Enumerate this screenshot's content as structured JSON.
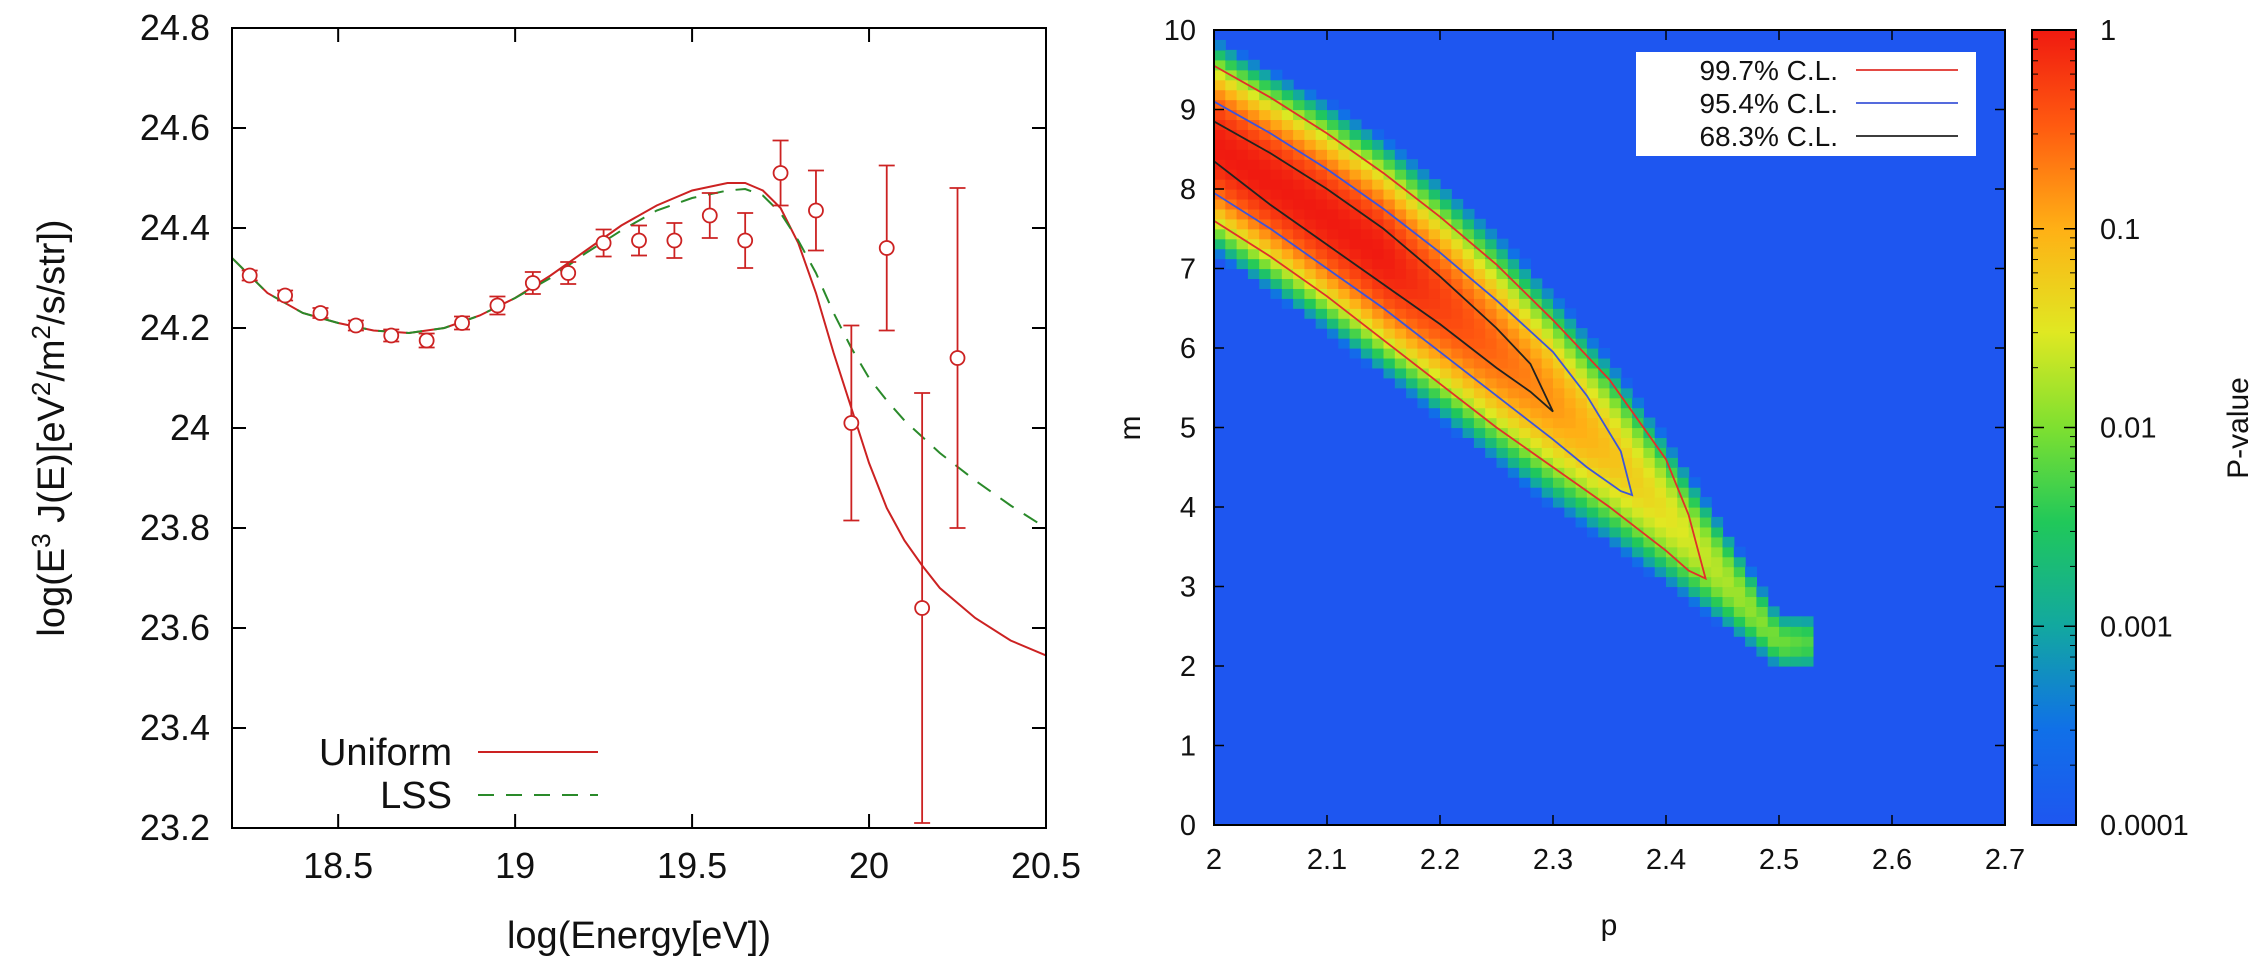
{
  "chart_data": [
    {
      "type": "scatter",
      "xlabel": "log(Energy[eV])",
      "ylabel_parts": {
        "a": "log(E",
        "a_sup": "3",
        "b": " J(E)[eV",
        "b_sup": "2",
        "c": "/m",
        "c_sup": "2",
        "d": "/s/str])"
      },
      "xlim": [
        18.2,
        20.5
      ],
      "ylim": [
        23.2,
        24.8
      ],
      "xticks": [
        "18.5",
        "19",
        "19.5",
        "20",
        "20.5"
      ],
      "yticks": [
        "23.2",
        "23.4",
        "23.6",
        "23.8",
        "24",
        "24.2",
        "24.4",
        "24.6",
        "24.8"
      ],
      "colors": {
        "data": "#cc2222",
        "uniform": "#cc2222",
        "lss": "#2a8a2a"
      },
      "points": [
        {
          "x": 18.25,
          "y": 24.305,
          "err": 0.01
        },
        {
          "x": 18.35,
          "y": 24.265,
          "err": 0.01
        },
        {
          "x": 18.45,
          "y": 24.23,
          "err": 0.01
        },
        {
          "x": 18.55,
          "y": 24.205,
          "err": 0.01
        },
        {
          "x": 18.65,
          "y": 24.185,
          "err": 0.012
        },
        {
          "x": 18.75,
          "y": 24.175,
          "err": 0.014
        },
        {
          "x": 18.85,
          "y": 24.21,
          "err": 0.013
        },
        {
          "x": 18.95,
          "y": 24.245,
          "err": 0.018
        },
        {
          "x": 19.05,
          "y": 24.29,
          "err": 0.022
        },
        {
          "x": 19.15,
          "y": 24.31,
          "err": 0.022
        },
        {
          "x": 19.25,
          "y": 24.37,
          "err": 0.027
        },
        {
          "x": 19.35,
          "y": 24.375,
          "err": 0.03
        },
        {
          "x": 19.45,
          "y": 24.375,
          "err": 0.035
        },
        {
          "x": 19.55,
          "y": 24.425,
          "err": 0.045
        },
        {
          "x": 19.65,
          "y": 24.375,
          "err": 0.055
        },
        {
          "x": 19.75,
          "y": 24.51,
          "err": 0.065
        },
        {
          "x": 19.85,
          "y": 24.435,
          "err": 0.08
        },
        {
          "x": 19.95,
          "y": 24.01,
          "err": 0.195
        },
        {
          "x": 20.05,
          "y": 24.36,
          "err": 0.165
        },
        {
          "x": 20.15,
          "y": 23.64,
          "err": 0.43
        },
        {
          "x": 20.25,
          "y": 24.14,
          "err": 0.34
        }
      ],
      "series": [
        {
          "name": "Uniform",
          "x": [
            18.2,
            18.3,
            18.4,
            18.5,
            18.6,
            18.7,
            18.8,
            18.9,
            19.0,
            19.1,
            19.2,
            19.3,
            19.4,
            19.5,
            19.6,
            19.65,
            19.7,
            19.75,
            19.8,
            19.85,
            19.9,
            19.95,
            20.0,
            20.05,
            20.1,
            20.15,
            20.2,
            20.3,
            20.4,
            20.5
          ],
          "y": [
            24.34,
            24.27,
            24.23,
            24.21,
            24.195,
            24.19,
            24.2,
            24.225,
            24.26,
            24.305,
            24.355,
            24.405,
            24.445,
            24.475,
            24.49,
            24.49,
            24.475,
            24.44,
            24.37,
            24.27,
            24.15,
            24.04,
            23.93,
            23.84,
            23.775,
            23.725,
            23.68,
            23.62,
            23.575,
            23.545
          ]
        },
        {
          "name": "LSS",
          "x": [
            18.2,
            18.3,
            18.4,
            18.5,
            18.6,
            18.7,
            18.8,
            18.9,
            19.0,
            19.1,
            19.2,
            19.3,
            19.4,
            19.5,
            19.6,
            19.65,
            19.7,
            19.75,
            19.8,
            19.85,
            19.9,
            19.95,
            20.0,
            20.05,
            20.1,
            20.2,
            20.3,
            20.4,
            20.5
          ],
          "y": [
            24.34,
            24.27,
            24.23,
            24.21,
            24.195,
            24.19,
            24.2,
            24.225,
            24.26,
            24.3,
            24.35,
            24.395,
            24.435,
            24.46,
            24.475,
            24.478,
            24.465,
            24.43,
            24.375,
            24.31,
            24.23,
            24.16,
            24.1,
            24.055,
            24.015,
            23.95,
            23.895,
            23.845,
            23.8
          ]
        }
      ],
      "legend": [
        "Uniform",
        "LSS"
      ],
      "legend_position": "bottom-left"
    },
    {
      "type": "heatmap",
      "xlabel": "p",
      "ylabel": "m",
      "xlim": [
        2.0,
        2.7
      ],
      "ylim": [
        0,
        10
      ],
      "xticks": [
        "2",
        "2.1",
        "2.2",
        "2.3",
        "2.4",
        "2.5",
        "2.6",
        "2.7"
      ],
      "yticks": [
        "0",
        "1",
        "2",
        "3",
        "4",
        "5",
        "6",
        "7",
        "8",
        "9",
        "10"
      ],
      "colorbar": {
        "label": "P-value",
        "scale": "log",
        "range": [
          0.0001,
          1
        ],
        "ticks": [
          "0.0001",
          "0.001",
          "0.01",
          "0.1",
          "1"
        ]
      },
      "background_color": "#1e56f0",
      "peak": {
        "p": 2.15,
        "m": 7.2
      },
      "contours": [
        {
          "name": "99.7% C.L.",
          "color": "#e0302a",
          "upper_p": [
            2.0,
            2.05,
            2.1,
            2.15,
            2.2,
            2.25,
            2.3,
            2.35,
            2.4,
            2.42,
            2.435
          ],
          "upper_m": [
            9.55,
            9.15,
            8.7,
            8.2,
            7.65,
            7.05,
            6.35,
            5.6,
            4.6,
            3.9,
            3.1
          ],
          "lower_p": [
            2.0,
            2.05,
            2.1,
            2.15,
            2.2,
            2.25,
            2.3,
            2.35,
            2.4,
            2.42,
            2.435
          ],
          "lower_m": [
            7.6,
            7.15,
            6.65,
            6.1,
            5.55,
            5.0,
            4.5,
            4.0,
            3.45,
            3.2,
            3.1
          ]
        },
        {
          "name": "95.4% C.L.",
          "color": "#3d56d8",
          "upper_p": [
            2.0,
            2.05,
            2.1,
            2.15,
            2.2,
            2.25,
            2.3,
            2.33,
            2.36,
            2.37
          ],
          "upper_m": [
            9.1,
            8.7,
            8.25,
            7.75,
            7.2,
            6.6,
            5.95,
            5.4,
            4.7,
            4.15
          ],
          "lower_p": [
            2.0,
            2.05,
            2.1,
            2.15,
            2.2,
            2.25,
            2.3,
            2.33,
            2.36,
            2.37
          ],
          "lower_m": [
            7.95,
            7.5,
            7.0,
            6.5,
            5.95,
            5.4,
            4.85,
            4.5,
            4.2,
            4.15
          ]
        },
        {
          "name": "68.3% C.L.",
          "color": "#222222",
          "upper_p": [
            2.0,
            2.05,
            2.1,
            2.15,
            2.2,
            2.25,
            2.28,
            2.3
          ],
          "upper_m": [
            8.85,
            8.45,
            8.0,
            7.5,
            6.9,
            6.25,
            5.8,
            5.2
          ],
          "lower_p": [
            2.0,
            2.05,
            2.1,
            2.15,
            2.2,
            2.25,
            2.28,
            2.3
          ],
          "lower_m": [
            8.35,
            7.8,
            7.3,
            6.8,
            6.3,
            5.75,
            5.45,
            5.2
          ]
        }
      ],
      "legend": [
        "99.7% C.L.",
        "95.4% C.L.",
        "68.3% C.L."
      ],
      "legend_position": "top-right"
    }
  ]
}
